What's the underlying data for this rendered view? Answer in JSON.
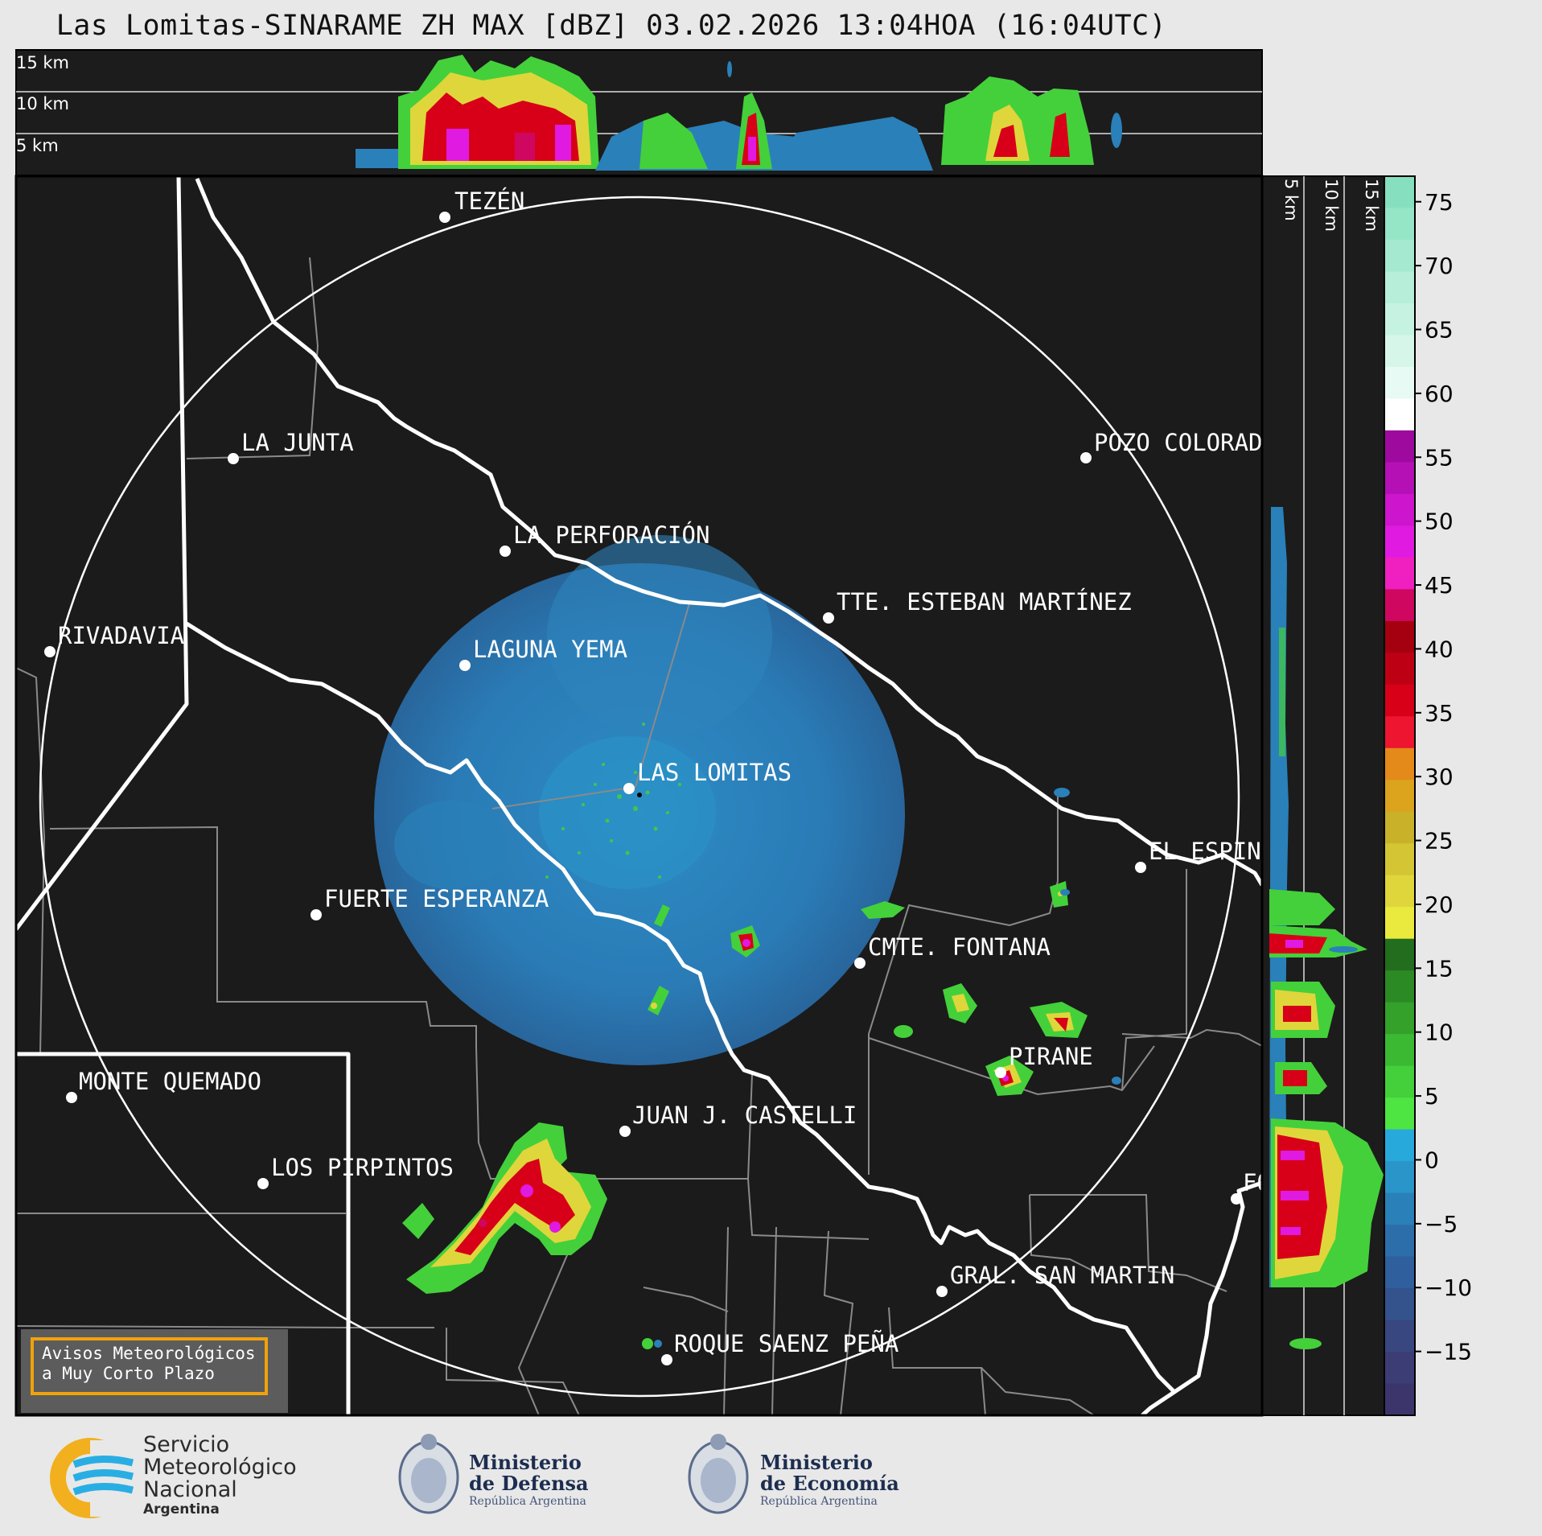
{
  "header": {
    "title": "Las Lomitas-SINARAME ZH MAX [dBZ] 03.02.2026 13:04HOA (16:04UTC)"
  },
  "profile_top": {
    "levels": [
      "15 km",
      "10 km",
      "5 km"
    ]
  },
  "profile_right": {
    "levels": [
      "5 km",
      "10 km",
      "15 km"
    ]
  },
  "colorbar": {
    "ticks": [
      "75",
      "70",
      "65",
      "60",
      "55",
      "50",
      "45",
      "40",
      "35",
      "30",
      "25",
      "20",
      "15",
      "10",
      "5",
      "0",
      "−5",
      "−10",
      "−15"
    ],
    "colors": [
      "#86e0bf",
      "#95e5c7",
      "#a5e9d0",
      "#b6eed9",
      "#c6f2e2",
      "#d6f6ea",
      "#e7faf3",
      "#ffffff",
      "#9e0a9e",
      "#b510b5",
      "#cc15cc",
      "#e01ae0",
      "#f020c0",
      "#cf0760",
      "#a50010",
      "#be0015",
      "#d80018",
      "#ed1530",
      "#e38a1a",
      "#dca31c",
      "#c9b22a",
      "#d4c534",
      "#dfd63c",
      "#eaea3e",
      "#236d1e",
      "#2c8a24",
      "#33a12a",
      "#3bb932",
      "#44d03a",
      "#4ee442",
      "#27a9dc",
      "#2995c8",
      "#2a80b8",
      "#2c6eaa",
      "#2f5f9c",
      "#34528c",
      "#394780",
      "#3c3d74",
      "#3c356c"
    ],
    "vmin": -20,
    "vmax": 77
  },
  "cities": [
    {
      "name": "TEZÉN"
    },
    {
      "name": "LA JUNTA"
    },
    {
      "name": "POZO COLORADO"
    },
    {
      "name": "LA PERFORACIÓN"
    },
    {
      "name": "TTE. ESTEBAN MARTÍNEZ"
    },
    {
      "name": "RIVADAVIA"
    },
    {
      "name": "LAGUNA YEMA"
    },
    {
      "name": "LAS LOMITAS"
    },
    {
      "name": "EL ESPINILLO"
    },
    {
      "name": "FUERTE ESPERANZA"
    },
    {
      "name": "CMTE. FONTANA"
    },
    {
      "name": "PIRANE"
    },
    {
      "name": "MONTE QUEMADO"
    },
    {
      "name": "JUAN J. CASTELLI"
    },
    {
      "name": "LOS PIRPINTOS"
    },
    {
      "name": "GRAL. SAN MARTIN"
    },
    {
      "name": "ROQUE SAENZ PEÑA"
    },
    {
      "name": "FORMOSA"
    }
  ],
  "alert": {
    "line1": "Avisos Meteorológicos",
    "line2": "a Muy Corto Plazo"
  },
  "footer": {
    "smn_line1": "Servicio",
    "smn_line2": "Meteorológico",
    "smn_line3": "Nacional",
    "smn_line4": "Argentina",
    "defensa_line1": "Ministerio",
    "defensa_line2": "de Defensa",
    "defensa_line3": "República Argentina",
    "economia_line1": "Ministerio",
    "economia_line2": "de Economía",
    "economia_line3": "República Argentina"
  }
}
